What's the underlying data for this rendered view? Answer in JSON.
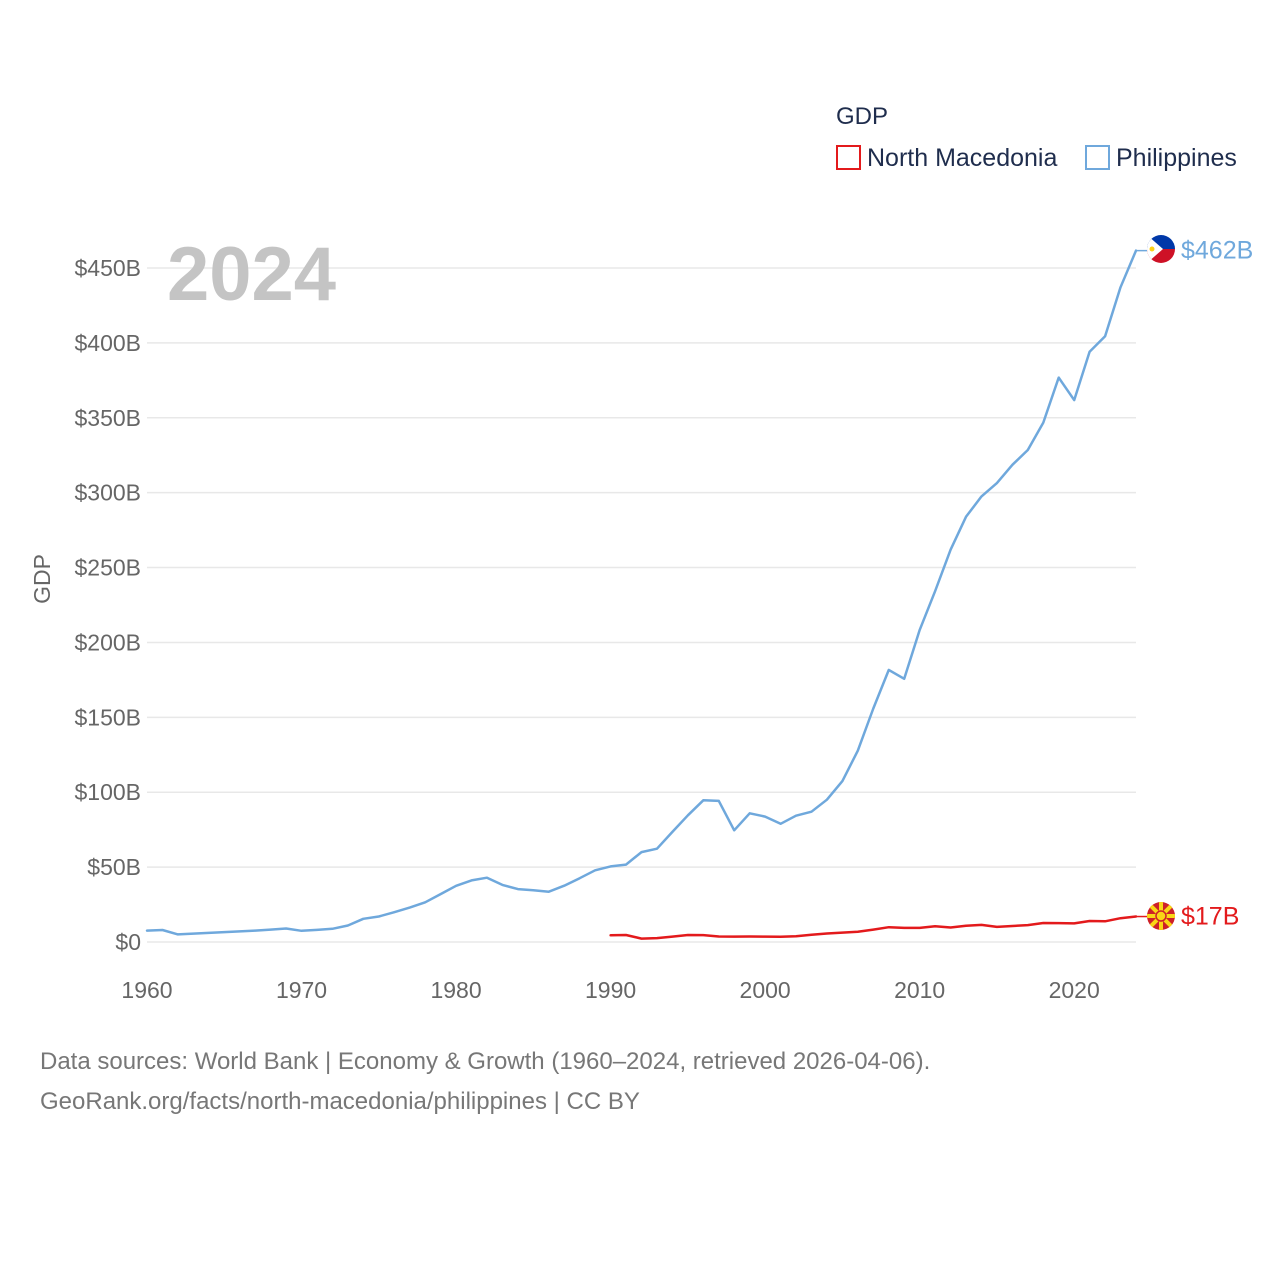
{
  "chart_data": {
    "type": "line",
    "title": "",
    "year_label": "2024",
    "xlabel": "",
    "ylabel": "GDP",
    "xlim": [
      1960,
      2024
    ],
    "ylim": [
      0,
      450
    ],
    "x_ticks": [
      1960,
      1970,
      1980,
      1990,
      2000,
      2010,
      2020
    ],
    "x_tick_labels": [
      "1960",
      "1970",
      "1980",
      "1990",
      "2000",
      "2010",
      "2020"
    ],
    "y_ticks": [
      0,
      50,
      100,
      150,
      200,
      250,
      300,
      350,
      400,
      450
    ],
    "y_tick_labels": [
      "$0",
      "$50B",
      "$100B",
      "$150B",
      "$200B",
      "$250B",
      "$300B",
      "$350B",
      "$400B",
      "$450B"
    ],
    "legend": {
      "title": "GDP",
      "position": "top-right"
    },
    "series": [
      {
        "name": "North Macedonia",
        "color": "#e31a1c",
        "end_label": "$17B",
        "flag": "north-macedonia-flag-icon",
        "x": [
          1990,
          1991,
          1992,
          1993,
          1994,
          1995,
          1996,
          1997,
          1998,
          1999,
          2000,
          2001,
          2002,
          2003,
          2004,
          2005,
          2006,
          2007,
          2008,
          2009,
          2010,
          2011,
          2012,
          2013,
          2014,
          2015,
          2016,
          2017,
          2018,
          2019,
          2020,
          2021,
          2022,
          2023,
          2024
        ],
        "values": [
          4.5,
          4.7,
          2.3,
          2.6,
          3.6,
          4.7,
          4.6,
          3.7,
          3.6,
          3.7,
          3.6,
          3.5,
          3.8,
          4.9,
          5.7,
          6.3,
          6.9,
          8.3,
          9.9,
          9.4,
          9.4,
          10.5,
          9.7,
          10.8,
          11.4,
          10.1,
          10.7,
          11.3,
          12.7,
          12.6,
          12.4,
          14.0,
          13.8,
          15.9,
          17.0
        ]
      },
      {
        "name": "Philippines",
        "color": "#6fa8dc",
        "end_label": "$462B",
        "flag": "philippines-flag-icon",
        "x": [
          1960,
          1961,
          1962,
          1963,
          1964,
          1965,
          1966,
          1967,
          1968,
          1969,
          1970,
          1971,
          1972,
          1973,
          1974,
          1975,
          1976,
          1977,
          1978,
          1979,
          1980,
          1981,
          1982,
          1983,
          1984,
          1985,
          1986,
          1987,
          1988,
          1989,
          1990,
          1991,
          1992,
          1993,
          1994,
          1995,
          1996,
          1997,
          1998,
          1999,
          2000,
          2001,
          2002,
          2003,
          2004,
          2005,
          2006,
          2007,
          2008,
          2009,
          2010,
          2011,
          2012,
          2013,
          2014,
          2015,
          2016,
          2017,
          2018,
          2019,
          2020,
          2021,
          2022,
          2023,
          2024
        ],
        "values": [
          7.6,
          8.0,
          5.1,
          5.6,
          6.1,
          6.6,
          7.1,
          7.6,
          8.3,
          9.0,
          7.5,
          8.1,
          8.8,
          11.0,
          15.5,
          17.0,
          19.9,
          23.0,
          26.5,
          32.0,
          37.5,
          41.1,
          42.9,
          38.1,
          35.3,
          34.5,
          33.6,
          37.6,
          42.6,
          47.9,
          50.5,
          51.7,
          60.0,
          62.3,
          73.5,
          84.6,
          94.6,
          94.2,
          74.6,
          85.9,
          83.7,
          78.9,
          84.3,
          87.0,
          95.0,
          107.4,
          127.7,
          155.9,
          181.7,
          175.7,
          208.4,
          234.2,
          261.9,
          283.9,
          297.5,
          306.4,
          318.6,
          328.5,
          346.8,
          376.8,
          361.8,
          394.1,
          404.4,
          437.1,
          461.6
        ]
      }
    ]
  },
  "footer": {
    "line1": "Data sources: World Bank | Economy & Growth (1960–2024, retrieved 2026-04-06).",
    "line2": "GeoRank.org/facts/north-macedonia/philippines | CC BY"
  }
}
